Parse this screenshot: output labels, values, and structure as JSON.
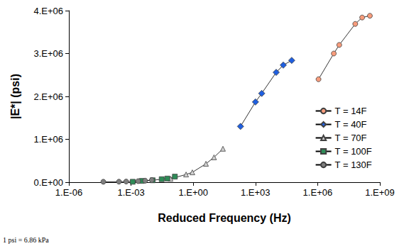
{
  "chart_data": {
    "type": "line",
    "x_label": "Reduced Frequency (Hz)",
    "y_label": "|E*| (psi)",
    "annotations": [
      "1 psi = 6.86 kPa"
    ],
    "log": "x",
    "grid": false,
    "legend": "right",
    "xlim": [
      1e-06,
      1000000000
    ],
    "xticks": [
      {
        "value": 1e-06,
        "label": "1.E-06"
      },
      {
        "value": 0.001,
        "label": "1.E-03"
      },
      {
        "value": 1,
        "label": "1.E+00"
      },
      {
        "value": 1000,
        "label": "1.E+03"
      },
      {
        "value": 1000000,
        "label": "1.E+06"
      },
      {
        "value": 1000000000,
        "label": "1.E+09"
      }
    ],
    "ylim": [
      0,
      4000000
    ],
    "yticks": [
      {
        "value": 0,
        "label": "0.E+00"
      },
      {
        "value": 1000000,
        "label": "1.E+06"
      },
      {
        "value": 2000000,
        "label": "2.E+06"
      },
      {
        "value": 3000000,
        "label": "3.E+06"
      },
      {
        "value": 4000000,
        "label": "4.E+06"
      }
    ],
    "series": [
      {
        "name": "T = 14F",
        "color": "#f79c7c",
        "marker": "circle",
        "x": [
          1100000,
          6000000,
          11000000,
          65000000,
          140000000,
          330000000
        ],
        "values": [
          2400000,
          3000000,
          3200000,
          3690000,
          3840000,
          3880000
        ]
      },
      {
        "name": "T = 40F",
        "color": "#1f5fe0",
        "marker": "diamond",
        "x": [
          190,
          1000,
          2000,
          10000,
          22000,
          56000
        ],
        "values": [
          1300000,
          1870000,
          2070000,
          2560000,
          2730000,
          2840000
        ]
      },
      {
        "name": "T = 70F",
        "color": "#d0d0d0",
        "marker": "triangle",
        "x": [
          0.08,
          0.45,
          0.9,
          4.1,
          10,
          27
        ],
        "values": [
          80000,
          180000,
          230000,
          430000,
          580000,
          780000
        ]
      },
      {
        "name": "T = 100F",
        "color": "#2e8b57",
        "marker": "rect",
        "x": [
          0.0012,
          0.0033,
          0.011,
          0.03,
          0.056,
          0.13
        ],
        "values": [
          10000,
          30000,
          45000,
          70000,
          85000,
          130000
        ]
      },
      {
        "name": "T = 130F",
        "color": "#7f7f7f",
        "marker": "circle",
        "x": [
          4.6e-05,
          0.00026,
          0.00058,
          0.0022,
          0.0048,
          0.01
        ],
        "values": [
          10000,
          12000,
          15000,
          25000,
          35000,
          50000
        ]
      }
    ]
  }
}
